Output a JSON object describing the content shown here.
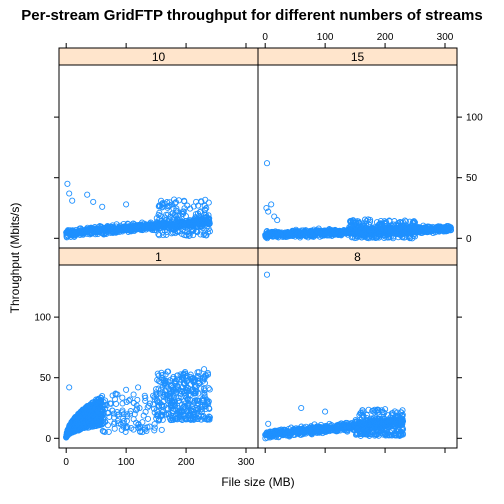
{
  "chart_data": {
    "type": "scatter",
    "title": "Per-stream GridFTP throughput for different numbers of streams",
    "xlabel": "File size (MB)",
    "ylabel": "Throughput (Mbits/s)",
    "xlim": [
      -12,
      320
    ],
    "ylim": [
      -8,
      143
    ],
    "x_ticks": [
      0,
      100,
      200,
      300
    ],
    "y_ticks": [
      0,
      50,
      100
    ],
    "grid": false,
    "layout": "2x2 trellis panels",
    "marker": "open circle",
    "marker_color": "#1e90ff",
    "strip_color": "#ffe5cc",
    "panels": [
      {
        "label": "10",
        "position": "top-left",
        "clusters": [
          {
            "x": [
              0,
              240
            ],
            "y_trend": [
              4,
              14
            ],
            "y_spread": 6,
            "n": 700
          },
          {
            "x": [
              150,
              240
            ],
            "y": [
              2,
              32
            ],
            "n": 160
          }
        ],
        "outliers": [
          [
            2,
            45
          ],
          [
            5,
            37
          ],
          [
            35,
            36
          ],
          [
            45,
            30
          ],
          [
            60,
            26
          ],
          [
            100,
            28
          ],
          [
            180,
            32
          ],
          [
            160,
            28
          ],
          [
            10,
            31
          ],
          [
            220,
            27
          ]
        ]
      },
      {
        "label": "15",
        "position": "top-right",
        "clusters": [
          {
            "x": [
              0,
              310
            ],
            "y_trend": [
              3,
              8
            ],
            "y_spread": 5,
            "n": 1100
          },
          {
            "x": [
              140,
              250
            ],
            "y": [
              0,
              16
            ],
            "n": 250
          }
        ],
        "outliers": [
          [
            3,
            62
          ],
          [
            10,
            28
          ],
          [
            5,
            22
          ],
          [
            15,
            18
          ],
          [
            2,
            25
          ],
          [
            20,
            15
          ]
        ]
      },
      {
        "label": "1",
        "position": "bottom-left",
        "clusters": [
          {
            "x": [
              0,
              60
            ],
            "y_curve": "rising",
            "y_max": 32,
            "n": 650
          },
          {
            "x": [
              60,
              160
            ],
            "y": [
              5,
              38
            ],
            "n": 120
          },
          {
            "x": [
              150,
              240
            ],
            "y": [
              15,
              55
            ],
            "n": 350
          }
        ],
        "outliers": [
          [
            5,
            42
          ],
          [
            170,
            55
          ],
          [
            230,
            57
          ],
          [
            120,
            42
          ],
          [
            100,
            40
          ]
        ]
      },
      {
        "label": "8",
        "position": "bottom-right",
        "clusters": [
          {
            "x": [
              0,
              230
            ],
            "y_trend": [
              3,
              14
            ],
            "y_spread": 6,
            "n": 700
          },
          {
            "x": [
              150,
              230
            ],
            "y": [
              2,
              24
            ],
            "n": 220
          }
        ],
        "outliers": [
          [
            3,
            135
          ],
          [
            60,
            25
          ],
          [
            100,
            22
          ],
          [
            200,
            24
          ],
          [
            5,
            12
          ]
        ]
      }
    ]
  }
}
